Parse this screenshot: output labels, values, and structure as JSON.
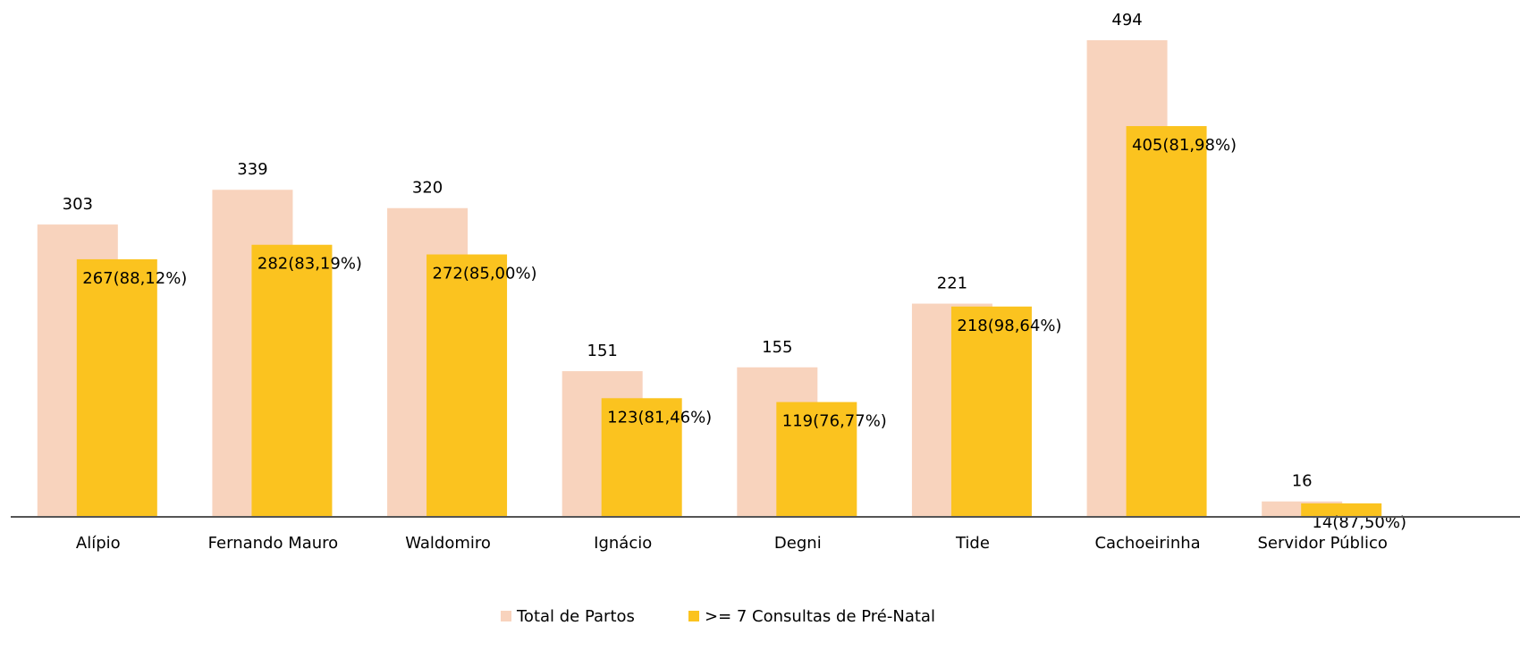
{
  "chart_data": {
    "type": "bar",
    "categories": [
      "Alípio",
      "Fernando Mauro",
      "Waldomiro",
      "Ignácio",
      "Degni",
      "Tide",
      "Cachoeirinha",
      "Servidor Público"
    ],
    "series": [
      {
        "name": "Total de Partos",
        "color": "#f8d3bd",
        "values": [
          303,
          339,
          320,
          151,
          155,
          221,
          494,
          16
        ]
      },
      {
        "name": ">= 7 Consultas de Pré-Natal",
        "color": "#fbc31f",
        "values": [
          267,
          282,
          272,
          123,
          119,
          218,
          405,
          14
        ],
        "value_labels": [
          "267(88,12%)",
          "282(83,19%)",
          "272(85,00%)",
          "123(81,46%)",
          "119(76,77%)",
          "218(98,64%)",
          "405(81,98%)",
          "14(87,50%)"
        ]
      }
    ],
    "legend": "bottom"
  }
}
